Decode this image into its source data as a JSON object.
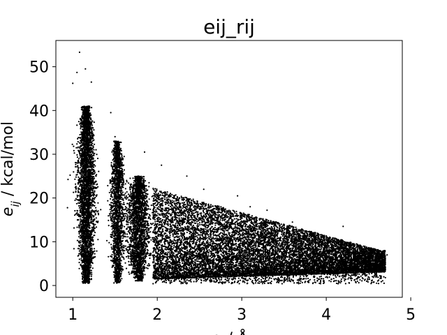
{
  "chart_data": {
    "type": "scatter",
    "title": "eij_rij",
    "ylabel": {
      "symbol": "e",
      "subscript": "ij",
      "unit": " / kcal/mol"
    },
    "xlabel": {
      "symbol": "r",
      "subscript": "ij",
      "unit": " / Å"
    },
    "xlim": [
      0.8,
      4.9
    ],
    "ylim": [
      -2.7,
      56
    ],
    "xticks": [
      1,
      2,
      3,
      4,
      5
    ],
    "yticks": [
      0,
      10,
      20,
      30,
      40,
      50
    ],
    "marker_color": "#000000",
    "grid": false,
    "clusters": [
      {
        "x_center": 1.16,
        "x_spread": 0.055,
        "y_min": 0.5,
        "y_max": 41,
        "count": 3500
      },
      {
        "x_center": 1.53,
        "x_spread": 0.045,
        "y_min": 0.5,
        "y_max": 33,
        "count": 1800
      },
      {
        "x_center": 1.78,
        "x_spread": 0.07,
        "y_min": 1,
        "y_max": 25,
        "count": 2200
      },
      {
        "x_range": [
          1.95,
          4.7
        ],
        "band": true,
        "count": 13000
      }
    ],
    "outliers": [
      {
        "x": 1.08,
        "y": 53.3
      },
      {
        "x": 1.15,
        "y": 49.5
      },
      {
        "x": 1.05,
        "y": 48.7
      },
      {
        "x": 1.0,
        "y": 46.2
      },
      {
        "x": 1.22,
        "y": 46.5
      },
      {
        "x": 1.45,
        "y": 39.5
      },
      {
        "x": 1.5,
        "y": 34.0
      },
      {
        "x": 1.85,
        "y": 30.5
      },
      {
        "x": 2.05,
        "y": 27.5
      },
      {
        "x": 2.35,
        "y": 25.0
      },
      {
        "x": 2.55,
        "y": 22.0
      },
      {
        "x": 2.95,
        "y": 20.5
      },
      {
        "x": 3.1,
        "y": 18.0
      },
      {
        "x": 3.3,
        "y": 17.2
      },
      {
        "x": 3.6,
        "y": 14.5
      },
      {
        "x": 4.2,
        "y": 13.5
      },
      {
        "x": 4.72,
        "y": 7.0
      }
    ]
  }
}
